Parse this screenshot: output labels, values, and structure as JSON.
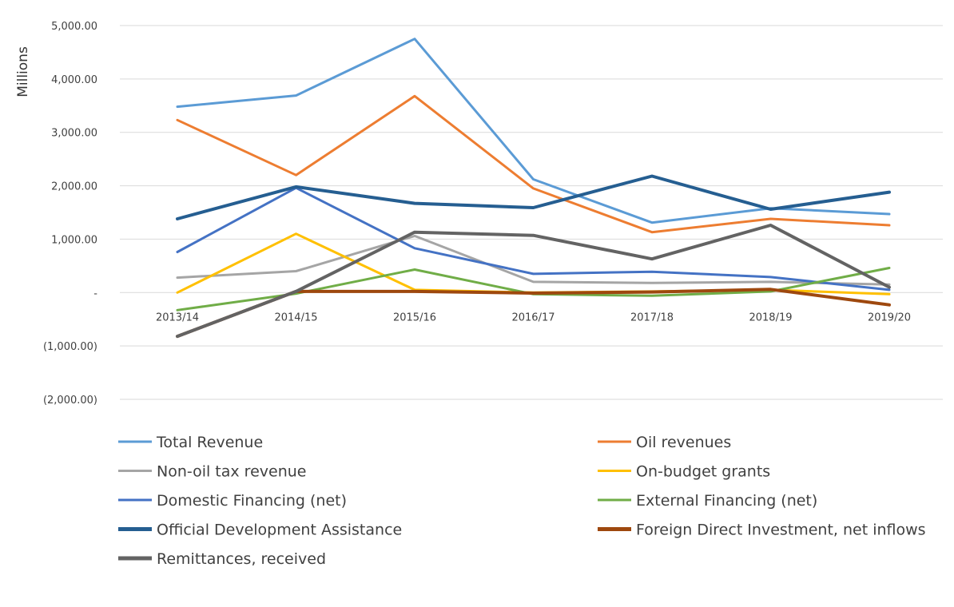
{
  "chart_data": {
    "type": "line",
    "title": "",
    "xlabel": "",
    "ylabel": "Millions",
    "ylim": [
      -2000,
      5000
    ],
    "y_ticks": [
      5000,
      4000,
      3000,
      2000,
      1000,
      0,
      -1000,
      -2000
    ],
    "y_tick_labels": [
      "5,000.00",
      "4,000.00",
      "3,000.00",
      "2,000.00",
      "1,000.00",
      "-",
      "(1,000.00)",
      "(2,000.00)"
    ],
    "grid": "horizontal",
    "legend_position": "bottom",
    "categories": [
      "2013/14",
      "2014/15",
      "2015/16",
      "2016/17",
      "2017/18",
      "2018/19",
      "2019/20"
    ],
    "series": [
      {
        "name": "Total Revenue",
        "color": "#5b9bd5",
        "values": [
          3480,
          3690,
          4750,
          2120,
          1310,
          1580,
          1470
        ]
      },
      {
        "name": "Oil revenues",
        "color": "#ed7d31",
        "values": [
          3230,
          2200,
          3680,
          1950,
          1130,
          1380,
          1260
        ]
      },
      {
        "name": "Non-oil tax revenue",
        "color": "#a5a5a5",
        "values": [
          280,
          400,
          1060,
          200,
          180,
          200,
          150
        ]
      },
      {
        "name": "On-budget grants",
        "color": "#ffc000",
        "values": [
          0,
          1100,
          50,
          0,
          20,
          50,
          -30
        ]
      },
      {
        "name": "Domestic Financing  (net)",
        "color": "#4472c4",
        "values": [
          760,
          1960,
          830,
          350,
          390,
          290,
          50
        ]
      },
      {
        "name": "External Financing (net)",
        "color": "#70ad47",
        "values": [
          -330,
          -20,
          430,
          -30,
          -60,
          20,
          460
        ]
      },
      {
        "name": "Official Development Assistance",
        "color": "#255e91",
        "values": [
          1380,
          1980,
          1670,
          1590,
          2180,
          1560,
          1880
        ]
      },
      {
        "name": "Foreign Direct Investment, net inflows",
        "color": "#9e480e",
        "values": [
          -820,
          20,
          20,
          -10,
          10,
          60,
          -230
        ]
      },
      {
        "name": "Remittances, received",
        "color": "#636363",
        "values": [
          -820,
          20,
          1130,
          1070,
          630,
          1260,
          100
        ]
      }
    ]
  }
}
